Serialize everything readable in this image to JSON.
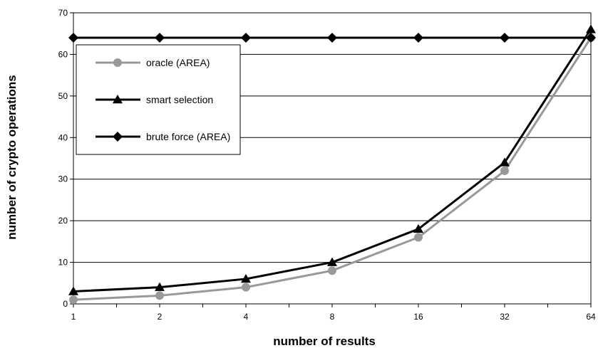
{
  "chart_data": {
    "type": "line",
    "title": "",
    "xlabel": "number of results",
    "ylabel": "number of crypto operations",
    "categories": [
      "1",
      "2",
      "4",
      "8",
      "16",
      "32",
      "64"
    ],
    "ylim": [
      0,
      70
    ],
    "yticks": [
      "0",
      "10",
      "20",
      "30",
      "40",
      "50",
      "60",
      "70"
    ],
    "grid": "horizontal",
    "legend_position": "top-left",
    "series": [
      {
        "name": "oracle (AREA)",
        "values": [
          1,
          2,
          4,
          8,
          16,
          32,
          64
        ],
        "color": "#999999",
        "marker": "circle"
      },
      {
        "name": "smart selection",
        "values": [
          3,
          4,
          6,
          10,
          18,
          34,
          66
        ],
        "color": "#000000",
        "marker": "triangle"
      },
      {
        "name": "brute force (AREA)",
        "values": [
          64,
          64,
          64,
          64,
          64,
          64,
          64
        ],
        "color": "#000000",
        "marker": "diamond"
      }
    ]
  }
}
